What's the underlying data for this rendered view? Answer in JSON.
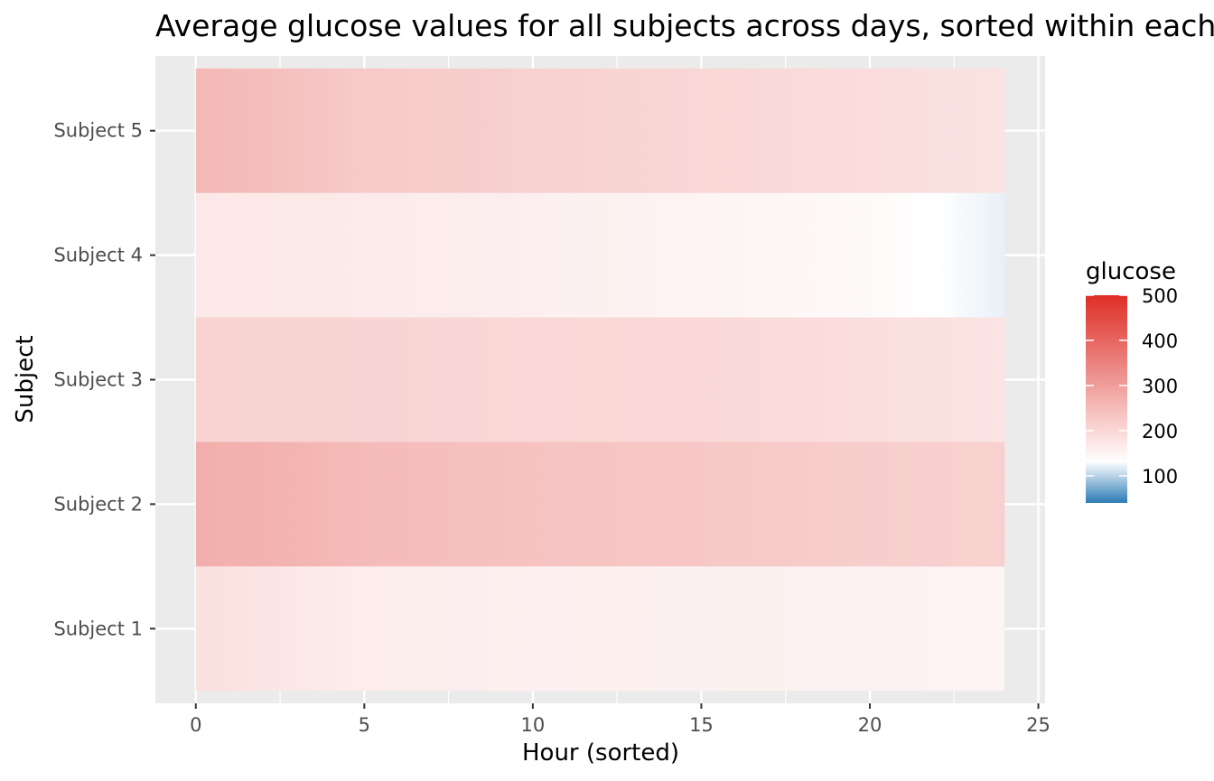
{
  "chart_data": {
    "type": "heatmap",
    "title": "Average glucose values for all subjects across days, sorted within each subject",
    "xlabel": "Hour (sorted)",
    "ylabel": "Subject",
    "xlim": [
      -1.2,
      25.2
    ],
    "x_ticks": [
      0,
      5,
      10,
      15,
      20,
      25
    ],
    "x_tick_labels": [
      "0",
      "5",
      "10",
      "15",
      "20",
      "25"
    ],
    "x_range": [
      0,
      24
    ],
    "categories": [
      "Subject 1",
      "Subject 2",
      "Subject 3",
      "Subject 4",
      "Subject 5"
    ],
    "series": [
      {
        "name": "Subject 1",
        "anchors": [
          [
            0,
            185
          ],
          [
            5,
            162
          ],
          [
            10,
            158
          ],
          [
            15,
            156
          ],
          [
            20,
            153
          ],
          [
            24,
            150
          ]
        ]
      },
      {
        "name": "Subject 2",
        "anchors": [
          [
            0,
            272
          ],
          [
            2,
            266
          ],
          [
            5,
            250
          ],
          [
            10,
            236
          ],
          [
            15,
            228
          ],
          [
            20,
            216
          ],
          [
            24,
            212
          ]
        ]
      },
      {
        "name": "Subject 3",
        "anchors": [
          [
            0,
            208
          ],
          [
            5,
            204
          ],
          [
            10,
            200
          ],
          [
            15,
            198
          ],
          [
            20,
            188
          ],
          [
            24,
            178
          ]
        ]
      },
      {
        "name": "Subject 4",
        "anchors": [
          [
            0,
            170
          ],
          [
            5,
            166
          ],
          [
            10,
            158
          ],
          [
            15,
            150
          ],
          [
            20,
            140
          ],
          [
            24,
            120
          ]
        ]
      },
      {
        "name": "Subject 5",
        "anchors": [
          [
            0,
            255
          ],
          [
            3,
            238
          ],
          [
            5,
            224
          ],
          [
            10,
            212
          ],
          [
            15,
            200
          ],
          [
            20,
            190
          ],
          [
            24,
            180
          ]
        ]
      }
    ],
    "legend": {
      "title": "glucose",
      "placement": "right",
      "min": 40,
      "max": 500,
      "ticks": [
        100,
        200,
        300,
        400,
        500
      ],
      "tick_labels": [
        "100",
        "200",
        "300",
        "400",
        "500"
      ],
      "midpoint": 130,
      "colors": {
        "low": "#2c7bb6",
        "mid": "#ffffff",
        "high": "#de2d26"
      }
    },
    "grid": true,
    "panel_color": "#ebebeb",
    "grid_color": "#ffffff"
  }
}
